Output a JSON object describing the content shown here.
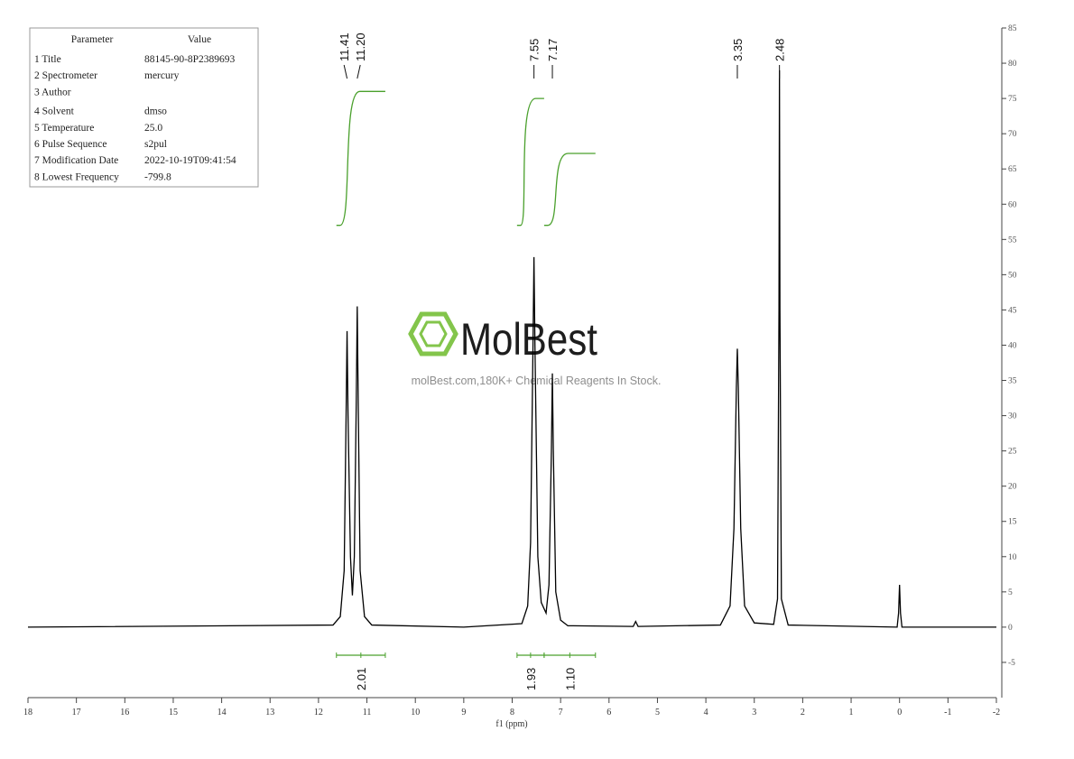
{
  "table": {
    "header": [
      "Parameter",
      "Value"
    ],
    "rows": [
      [
        "1 Title",
        "88145-90-8P2389693"
      ],
      [
        "2 Spectrometer",
        "mercury"
      ],
      [
        "3 Author"
      ],
      [
        "4 Solvent",
        "dmso"
      ],
      [
        "5 Temperature",
        "25.0"
      ],
      [
        "6 Pulse Sequence",
        "s2pul"
      ],
      [
        "7 Modification Date",
        "2022-10-19T09:41:54"
      ],
      [
        "8 Lowest Frequency",
        "-799.8"
      ]
    ]
  },
  "watermark": {
    "brand": "MolBest",
    "tagline": "molBest.com,180K+ Chemical Reagents In Stock."
  },
  "chart_data": {
    "type": "line",
    "xlabel": "f1 (ppm)",
    "color": "#000000",
    "x": [
      18,
      11.7,
      11.55,
      11.47,
      11.43,
      11.41,
      11.39,
      11.34,
      11.3,
      11.26,
      11.22,
      11.2,
      11.18,
      11.14,
      11.05,
      10.9,
      9,
      7.8,
      7.68,
      7.62,
      7.57,
      7.55,
      7.53,
      7.47,
      7.4,
      7.3,
      7.24,
      7.19,
      7.17,
      7.15,
      7.1,
      7.0,
      6.85,
      5.5,
      5.45,
      5.4,
      3.7,
      3.5,
      3.42,
      3.37,
      3.35,
      3.33,
      3.28,
      3.2,
      3.0,
      2.6,
      2.52,
      2.49,
      2.48,
      2.47,
      2.44,
      2.3,
      0.05,
      0.02,
      0,
      -0.02,
      -0.05,
      -2
    ],
    "values": [
      0,
      0.3,
      1.5,
      8,
      30,
      42,
      30,
      10,
      4.5,
      10,
      32,
      45.5,
      32,
      8,
      1.5,
      0.3,
      0,
      0.5,
      3,
      12,
      40,
      52.5,
      40,
      10,
      3.5,
      2,
      6,
      25,
      36,
      25,
      5,
      1,
      0.2,
      0.1,
      0.8,
      0.1,
      0.3,
      3,
      14,
      34,
      39.5,
      34,
      14,
      3,
      0.6,
      0.4,
      4,
      45,
      79,
      45,
      4,
      0.3,
      0,
      2,
      6,
      2,
      0,
      0
    ],
    "xlim": [
      18,
      -2
    ],
    "xticks": [
      18,
      17,
      16,
      15,
      14,
      13,
      12,
      11,
      10,
      9,
      8,
      7,
      6,
      5,
      4,
      3,
      2,
      1,
      0,
      -1,
      -2
    ],
    "ylim": [
      -10,
      85
    ],
    "yticks": [
      -5,
      0,
      5,
      10,
      15,
      20,
      25,
      30,
      35,
      40,
      45,
      50,
      55,
      60,
      65,
      70,
      75,
      80,
      85
    ],
    "peaks": [
      11.41,
      {
        "value": 11.2,
        "label": "11.20"
      },
      7.55,
      7.17,
      3.35,
      2.48
    ],
    "integrals": {
      "color": "#4aa02c",
      "values": [
        2.01,
        1.93,
        1.1
      ],
      "value_labels": [
        "2.01",
        "1.93",
        "1.10"
      ],
      "ranges": [
        [
          11.63,
          10.62
        ],
        [
          7.9,
          7.34
        ],
        [
          7.34,
          6.28
        ]
      ],
      "curves": [
        [
          57,
          76
        ],
        [
          57,
          75
        ],
        [
          57,
          67.2
        ]
      ]
    }
  }
}
